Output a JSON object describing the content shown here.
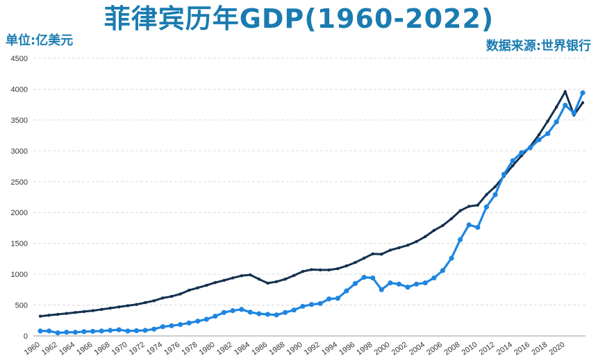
{
  "title": "菲律宾历年GDP(1960-2022)",
  "unit_label": "单位:亿美元",
  "source_label": "数据来源:世界银行",
  "colors": {
    "title": "#1a7bb0",
    "labels": "#1a7bb0",
    "series_dark": "#14304f",
    "series_light": "#1f86e0",
    "grid": "#d9d9d9"
  },
  "chart_data": {
    "type": "line",
    "x": [
      1960,
      1961,
      1962,
      1963,
      1964,
      1965,
      1966,
      1967,
      1968,
      1969,
      1970,
      1971,
      1972,
      1973,
      1974,
      1975,
      1976,
      1977,
      1978,
      1979,
      1980,
      1981,
      1982,
      1983,
      1984,
      1985,
      1986,
      1987,
      1988,
      1989,
      1990,
      1991,
      1992,
      1993,
      1994,
      1995,
      1996,
      1997,
      1998,
      1999,
      2000,
      2001,
      2002,
      2003,
      2004,
      2005,
      2006,
      2007,
      2008,
      2009,
      2010,
      2011,
      2012,
      2013,
      2014,
      2015,
      2016,
      2017,
      2018,
      2019,
      2020,
      2021,
      2022
    ],
    "xticks": [
      "1960",
      "1962",
      "1964",
      "1966",
      "1968",
      "1970",
      "1972",
      "1974",
      "1976",
      "1978",
      "1980",
      "1982",
      "1984",
      "1986",
      "1988",
      "1990",
      "1992",
      "1994",
      "1996",
      "1998",
      "2000",
      "2002",
      "2004",
      "2006",
      "2008",
      "2010",
      "2012",
      "2014",
      "2016",
      "2018",
      "2020"
    ],
    "ylim": [
      0,
      4500
    ],
    "yticks": [
      "0",
      "500",
      "1000",
      "1500",
      "2000",
      "2500",
      "3000",
      "3500",
      "4000",
      "4500"
    ],
    "grid": true,
    "series": [
      {
        "values": [
          320,
          335,
          350,
          365,
          380,
          395,
          410,
          430,
          450,
          470,
          490,
          510,
          540,
          570,
          615,
          640,
          680,
          740,
          780,
          820,
          865,
          900,
          940,
          975,
          990,
          920,
          855,
          880,
          920,
          980,
          1045,
          1075,
          1070,
          1070,
          1090,
          1135,
          1190,
          1260,
          1330,
          1325,
          1390,
          1430,
          1470,
          1530,
          1610,
          1710,
          1790,
          1900,
          2030,
          2100,
          2120,
          2290,
          2420,
          2590,
          2760,
          2920,
          3070,
          3260,
          3480,
          3710,
          3960,
          3580,
          3780
        ]
      },
      {
        "values": [
          80,
          80,
          50,
          60,
          60,
          70,
          75,
          80,
          90,
          100,
          80,
          85,
          90,
          110,
          150,
          165,
          185,
          210,
          240,
          270,
          320,
          380,
          410,
          430,
          385,
          360,
          350,
          340,
          380,
          420,
          480,
          510,
          525,
          600,
          610,
          730,
          850,
          950,
          940,
          750,
          860,
          840,
          790,
          840,
          860,
          940,
          1060,
          1260,
          1560,
          1800,
          1760,
          2090,
          2290,
          2620,
          2840,
          2970,
          3050,
          3180,
          3280,
          3470,
          3740,
          3610,
          3940
        ]
      }
    ]
  }
}
